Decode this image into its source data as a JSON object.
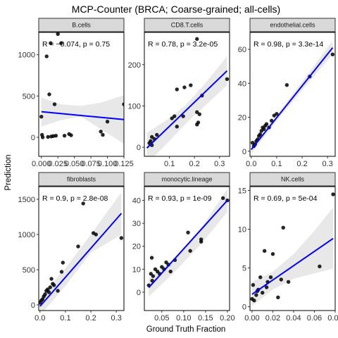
{
  "figure": {
    "title": "MCP-Counter (BRCA; Coarse-grained; all-cells)",
    "xlabel": "Ground Truth Fraction",
    "ylabel": "Prediction"
  },
  "colors": {
    "fit_line": "#0000ff",
    "ci_band": "#d9d9d9",
    "point": "#000000",
    "strip_fill": "#d9d9d9",
    "strip_border": "#333333",
    "panel_border": "#000000"
  },
  "chart_data": [
    {
      "type": "scatter",
      "panel": "B.cells",
      "annotation": "R = −0.074, p = 0.75",
      "xlim": [
        -0.004,
        0.125
      ],
      "ylim": [
        -230,
        1270
      ],
      "xticks": [
        0,
        0.025,
        0.05,
        0.075,
        0.1,
        0.125
      ],
      "xtick_labels": [
        "0.000",
        "0.025",
        "0.050",
        "0.075",
        "0.100",
        "0.125"
      ],
      "yticks": [
        0,
        500,
        1000
      ],
      "ytick_labels": [
        "0",
        "500",
        "1000"
      ],
      "x": [
        0.0,
        0.001,
        0.002,
        0.008,
        0.01,
        0.012,
        0.014,
        0.015,
        0.018,
        0.02,
        0.022,
        0.035,
        0.042,
        0.045,
        0.09,
        0.093,
        0.1,
        0.125,
        0.025,
        0.03
      ],
      "y": [
        250,
        30,
        0,
        980,
        5,
        520,
        1140,
        10,
        15,
        400,
        20,
        20,
        40,
        25,
        70,
        30,
        190,
        400,
        1250,
        1140
      ],
      "fit": {
        "x": [
          0,
          0.125
        ],
        "y": [
          310,
          215
        ]
      },
      "ci": {
        "x": [
          0,
          0.03,
          0.06,
          0.09,
          0.125
        ],
        "upper": [
          480,
          400,
          380,
          420,
          510
        ],
        "lower": [
          130,
          210,
          250,
          100,
          -80
        ]
      }
    },
    {
      "type": "scatter",
      "panel": "CD8.T.cells",
      "annotation": "R = 0.78, p = 3.2e-05",
      "xlim": [
        0.0,
        0.34
      ],
      "ylim": [
        -22,
        278
      ],
      "xticks": [
        0.1,
        0.2,
        0.3
      ],
      "xtick_labels": [
        "0.1",
        "0.2",
        "0.3"
      ],
      "yticks": [
        0,
        100,
        200
      ],
      "ytick_labels": [
        "0",
        "100",
        "200"
      ],
      "x": [
        0.02,
        0.025,
        0.03,
        0.03,
        0.05,
        0.11,
        0.12,
        0.13,
        0.13,
        0.155,
        0.16,
        0.185,
        0.21,
        0.21,
        0.215,
        0.22,
        0.23,
        0.33,
        0.21,
        0.04
      ],
      "y": [
        10,
        15,
        25,
        5,
        30,
        70,
        75,
        50,
        140,
        75,
        145,
        150,
        85,
        55,
        60,
        80,
        125,
        165,
        262,
        20
      ],
      "fit": {
        "x": [
          0.01,
          0.33
        ],
        "y": [
          -2,
          185
        ]
      },
      "ci": {
        "x": [
          0.01,
          0.1,
          0.17,
          0.25,
          0.33
        ],
        "upper": [
          35,
          70,
          105,
          160,
          220
        ],
        "lower": [
          -40,
          15,
          60,
          105,
          150
        ]
      }
    },
    {
      "type": "scatter",
      "panel": "endothelial.cells",
      "annotation": "R = 0.98, p = 3.3e-14",
      "xlim": [
        -0.005,
        0.33
      ],
      "ylim": [
        -3,
        70
      ],
      "xticks": [
        0.0,
        0.1,
        0.2,
        0.3
      ],
      "xtick_labels": [
        "0.0",
        "0.1",
        "0.2",
        "0.3"
      ],
      "yticks": [
        0,
        20,
        40,
        60
      ],
      "ytick_labels": [
        "0",
        "20",
        "40",
        "60"
      ],
      "x": [
        0.005,
        0.01,
        0.015,
        0.02,
        0.025,
        0.03,
        0.035,
        0.04,
        0.045,
        0.05,
        0.055,
        0.06,
        0.07,
        0.08,
        0.09,
        0.1,
        0.14,
        0.23,
        0.32
      ],
      "y": [
        5,
        3,
        4,
        6,
        7,
        9,
        10,
        12,
        14,
        13,
        15,
        16,
        14,
        18,
        21,
        22,
        39,
        44,
        57
      ],
      "fit": {
        "x": [
          0.0,
          0.32
        ],
        "y": [
          1,
          61
        ]
      },
      "ci": {
        "x": [
          0.0,
          0.1,
          0.2,
          0.32
        ],
        "upper": [
          3.5,
          21,
          41,
          65
        ],
        "lower": [
          -1.5,
          18,
          36,
          57
        ]
      }
    },
    {
      "type": "scatter",
      "panel": "fibroblasts",
      "annotation": "R = 0.9, p = 2.8e-08",
      "xlim": [
        -0.005,
        0.33
      ],
      "ylim": [
        -80,
        1680
      ],
      "xticks": [
        0.0,
        0.1,
        0.2,
        0.3
      ],
      "xtick_labels": [
        "0.0",
        "0.1",
        "0.2",
        "0.3"
      ],
      "yticks": [
        0,
        500,
        1000,
        1500
      ],
      "ytick_labels": [
        "0",
        "500",
        "1000",
        "1500"
      ],
      "x": [
        0.0,
        0.005,
        0.01,
        0.015,
        0.02,
        0.025,
        0.03,
        0.035,
        0.04,
        0.045,
        0.05,
        0.055,
        0.07,
        0.085,
        0.09,
        0.15,
        0.17,
        0.21,
        0.22,
        0.32
      ],
      "y": [
        30,
        60,
        80,
        120,
        150,
        200,
        220,
        180,
        250,
        370,
        300,
        280,
        200,
        470,
        600,
        830,
        1440,
        1020,
        1000,
        950
      ],
      "fit": {
        "x": [
          0.0,
          0.32
        ],
        "y": [
          -20,
          1300
        ]
      },
      "ci": {
        "x": [
          0.0,
          0.1,
          0.2,
          0.32
        ],
        "upper": [
          110,
          520,
          1000,
          1600
        ],
        "lower": [
          -150,
          270,
          740,
          1000
        ]
      }
    },
    {
      "type": "scatter",
      "panel": "monocytic.lineage",
      "annotation": "R = 0.93, p = 1e-09",
      "xlim": [
        0.01,
        0.205
      ],
      "ylim": [
        -8,
        46
      ],
      "xticks": [
        0.05,
        0.1,
        0.15,
        0.2
      ],
      "xtick_labels": [
        "0.05",
        "0.10",
        "0.15",
        "0.20"
      ],
      "yticks": [
        0,
        10,
        20,
        30,
        40
      ],
      "ytick_labels": [
        "0",
        "10",
        "20",
        "30",
        "40"
      ],
      "x": [
        0.02,
        0.025,
        0.028,
        0.03,
        0.035,
        0.04,
        0.045,
        0.05,
        0.055,
        0.06,
        0.065,
        0.07,
        0.08,
        0.11,
        0.115,
        0.14,
        0.14,
        0.19,
        0.2,
        0.027
      ],
      "y": [
        3,
        8,
        5,
        7,
        10,
        9,
        8,
        11,
        10,
        13,
        12,
        9,
        14,
        26,
        18,
        22,
        23,
        41,
        40,
        15
      ],
      "fit": {
        "x": [
          0.02,
          0.2
        ],
        "y": [
          2,
          40
        ]
      },
      "ci": {
        "x": [
          0.02,
          0.08,
          0.14,
          0.2
        ],
        "upper": [
          6,
          15,
          28,
          45
        ],
        "lower": [
          -2,
          9,
          21,
          35
        ]
      }
    },
    {
      "type": "scatter",
      "panel": "NK.cells",
      "annotation": "R = 0.69, p = 5e-04",
      "xlim": [
        -0.002,
        0.08
      ],
      "ylim": [
        -0.5,
        15.5
      ],
      "xticks": [
        0.0,
        0.02,
        0.04,
        0.06,
        0.08
      ],
      "xtick_labels": [
        "0.00",
        "0.02",
        "0.04",
        "0.06",
        "0.08"
      ],
      "yticks": [
        0,
        5,
        10,
        15
      ],
      "ytick_labels": [
        "0",
        "5",
        "10",
        "15"
      ],
      "x": [
        0.0,
        0.001,
        0.002,
        0.004,
        0.006,
        0.008,
        0.01,
        0.012,
        0.014,
        0.015,
        0.018,
        0.02,
        0.025,
        0.028,
        0.03,
        0.035,
        0.065,
        0.078,
        0.005
      ],
      "y": [
        1,
        2.8,
        0.8,
        1.5,
        2.2,
        3.8,
        1.8,
        7.2,
        2.5,
        3.2,
        3.8,
        6.8,
        1.2,
        3.5,
        10.2,
        3.2,
        5.2,
        14.5,
        2
      ],
      "fit": {
        "x": [
          0.0,
          0.078
        ],
        "y": [
          1.6,
          8.8
        ]
      },
      "ci": {
        "x": [
          0.0,
          0.02,
          0.04,
          0.06,
          0.078
        ],
        "upper": [
          3.2,
          4.5,
          6.8,
          9.8,
          12.8
        ],
        "lower": [
          0.1,
          2.2,
          3.6,
          4.3,
          4.9
        ]
      }
    }
  ]
}
